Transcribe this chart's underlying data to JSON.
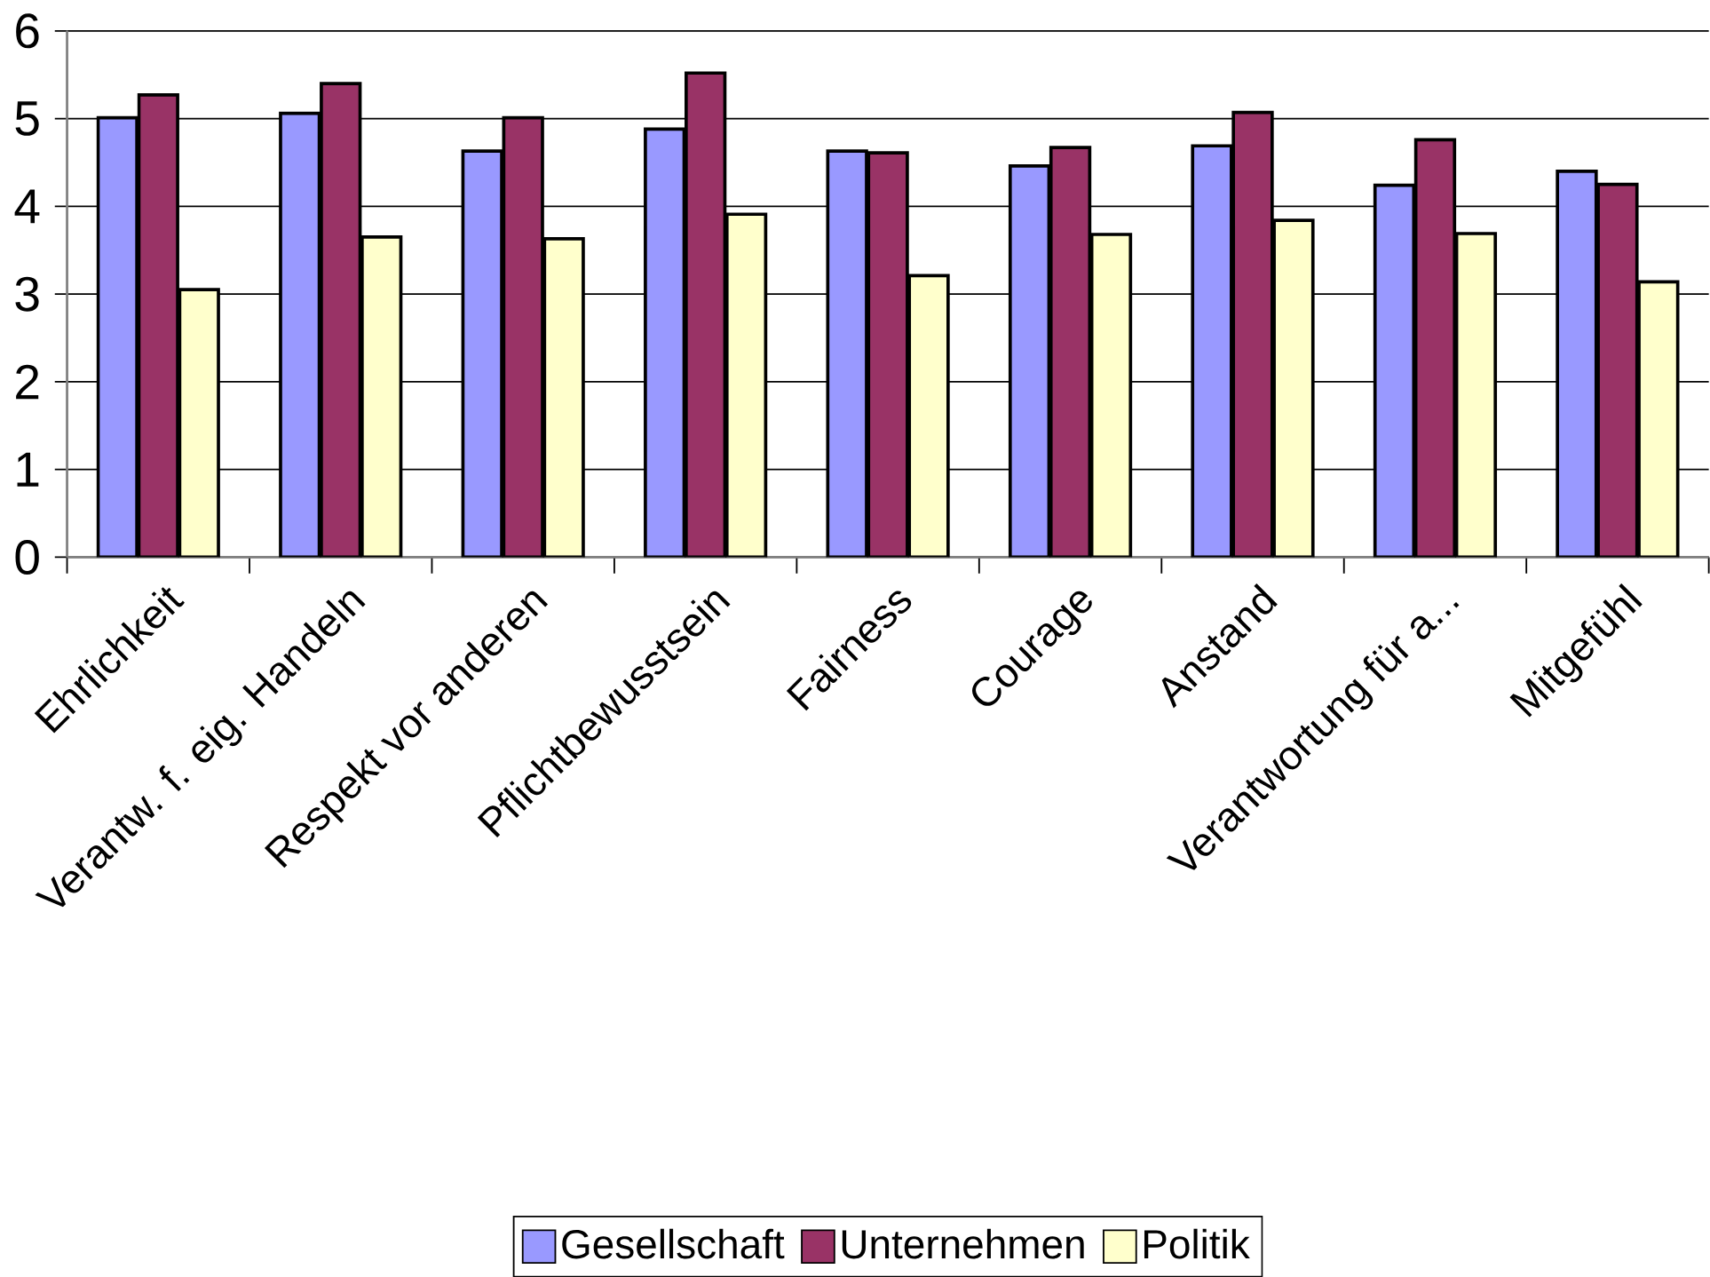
{
  "chart_data": {
    "type": "bar",
    "categories": [
      "Ehrlichkeit",
      "Verantw. f. eig. Handeln",
      "Respekt vor anderen",
      "Pflichtbewusstsein",
      "Fairness",
      "Courage",
      "Anstand",
      "Verantwortung für a...",
      "Mitgefühl"
    ],
    "series": [
      {
        "name": "Gesellschaft",
        "color": "#9999ff",
        "values": [
          5.01,
          5.06,
          4.63,
          4.88,
          4.63,
          4.46,
          4.69,
          4.24,
          4.4
        ]
      },
      {
        "name": "Unternehmen",
        "color": "#993366",
        "values": [
          5.27,
          5.4,
          5.01,
          5.52,
          4.61,
          4.67,
          5.07,
          4.76,
          4.25
        ]
      },
      {
        "name": "Politik",
        "color": "#ffffcc",
        "values": [
          3.05,
          3.65,
          3.63,
          3.91,
          3.21,
          3.68,
          3.84,
          3.69,
          3.14
        ]
      }
    ],
    "ylim": [
      0,
      6
    ],
    "yticks": [
      0,
      1,
      2,
      3,
      4,
      5,
      6
    ],
    "grid": "y",
    "legend": "bottom"
  }
}
